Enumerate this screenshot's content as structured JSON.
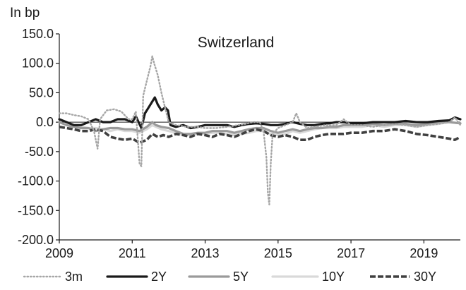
{
  "chart_data": {
    "type": "line",
    "title": "Switzerland",
    "ylabel": "In bp",
    "xlabel": "",
    "xlim": [
      2009,
      2020
    ],
    "ylim": [
      -200,
      150
    ],
    "x_ticks": [
      "2009",
      "2011",
      "2013",
      "2015",
      "2017",
      "2019"
    ],
    "y_ticks": [
      "150.0",
      "100.0",
      "50.0",
      "0.0",
      "-50.0",
      "-100.0",
      "-150.0",
      "-200.0"
    ],
    "zero_line": 0,
    "grid": false,
    "legend_position": "bottom",
    "series": [
      {
        "name": "3m",
        "color": "#a6a6a6",
        "style": "dotted",
        "points": [
          [
            2009.0,
            15
          ],
          [
            2009.2,
            15
          ],
          [
            2009.4,
            12
          ],
          [
            2009.6,
            10
          ],
          [
            2009.8,
            5
          ],
          [
            2009.95,
            -15
          ],
          [
            2010.05,
            -45
          ],
          [
            2010.12,
            5
          ],
          [
            2010.3,
            20
          ],
          [
            2010.5,
            22
          ],
          [
            2010.7,
            18
          ],
          [
            2010.9,
            5
          ],
          [
            2011.0,
            5
          ],
          [
            2011.1,
            18
          ],
          [
            2011.2,
            -70
          ],
          [
            2011.25,
            -75
          ],
          [
            2011.3,
            45
          ],
          [
            2011.4,
            70
          ],
          [
            2011.5,
            95
          ],
          [
            2011.55,
            112
          ],
          [
            2011.6,
            100
          ],
          [
            2011.7,
            80
          ],
          [
            2011.8,
            50
          ],
          [
            2011.9,
            25
          ],
          [
            2012.0,
            0
          ],
          [
            2012.2,
            -5
          ],
          [
            2012.5,
            -8
          ],
          [
            2012.8,
            -8
          ],
          [
            2013.0,
            -10
          ],
          [
            2013.3,
            -10
          ],
          [
            2013.6,
            -8
          ],
          [
            2013.9,
            -5
          ],
          [
            2014.1,
            -3
          ],
          [
            2014.3,
            0
          ],
          [
            2014.5,
            0
          ],
          [
            2014.6,
            -15
          ],
          [
            2014.68,
            -60
          ],
          [
            2014.72,
            -120
          ],
          [
            2014.76,
            -140
          ],
          [
            2014.8,
            -70
          ],
          [
            2014.85,
            -20
          ],
          [
            2015.0,
            -10
          ],
          [
            2015.2,
            -5
          ],
          [
            2015.4,
            0
          ],
          [
            2015.5,
            15
          ],
          [
            2015.6,
            0
          ],
          [
            2015.8,
            -10
          ],
          [
            2016.0,
            -8
          ],
          [
            2016.3,
            -5
          ],
          [
            2016.6,
            -5
          ],
          [
            2016.8,
            5
          ],
          [
            2017.0,
            -5
          ],
          [
            2017.3,
            -5
          ],
          [
            2017.6,
            -8
          ],
          [
            2017.9,
            -5
          ],
          [
            2018.2,
            -3
          ],
          [
            2018.5,
            -5
          ],
          [
            2018.8,
            -8
          ],
          [
            2019.1,
            -5
          ],
          [
            2019.4,
            -3
          ],
          [
            2019.7,
            0
          ],
          [
            2019.85,
            8
          ],
          [
            2020.0,
            -5
          ]
        ]
      },
      {
        "name": "2Y",
        "color": "#1a1a1a",
        "style": "solid-thick",
        "points": [
          [
            2009.0,
            5
          ],
          [
            2009.2,
            0
          ],
          [
            2009.4,
            -5
          ],
          [
            2009.6,
            -5
          ],
          [
            2009.8,
            0
          ],
          [
            2010.0,
            5
          ],
          [
            2010.2,
            0
          ],
          [
            2010.4,
            0
          ],
          [
            2010.6,
            5
          ],
          [
            2010.8,
            5
          ],
          [
            2011.0,
            0
          ],
          [
            2011.1,
            10
          ],
          [
            2011.25,
            -10
          ],
          [
            2011.35,
            15
          ],
          [
            2011.45,
            25
          ],
          [
            2011.55,
            35
          ],
          [
            2011.62,
            42
          ],
          [
            2011.7,
            30
          ],
          [
            2011.8,
            20
          ],
          [
            2011.9,
            25
          ],
          [
            2011.98,
            20
          ],
          [
            2012.05,
            -5
          ],
          [
            2012.2,
            -8
          ],
          [
            2012.4,
            -5
          ],
          [
            2012.6,
            -10
          ],
          [
            2012.8,
            -8
          ],
          [
            2013.0,
            -5
          ],
          [
            2013.2,
            -5
          ],
          [
            2013.4,
            -5
          ],
          [
            2013.6,
            -5
          ],
          [
            2013.8,
            -8
          ],
          [
            2014.0,
            -5
          ],
          [
            2014.2,
            -3
          ],
          [
            2014.4,
            -2
          ],
          [
            2014.6,
            -3
          ],
          [
            2014.8,
            -5
          ],
          [
            2015.0,
            -5
          ],
          [
            2015.2,
            -3
          ],
          [
            2015.4,
            0
          ],
          [
            2015.6,
            -3
          ],
          [
            2015.8,
            -5
          ],
          [
            2016.0,
            -5
          ],
          [
            2016.2,
            -3
          ],
          [
            2016.4,
            -2
          ],
          [
            2016.6,
            0
          ],
          [
            2016.8,
            0
          ],
          [
            2017.0,
            -2
          ],
          [
            2017.3,
            -2
          ],
          [
            2017.6,
            0
          ],
          [
            2017.9,
            0
          ],
          [
            2018.2,
            0
          ],
          [
            2018.5,
            2
          ],
          [
            2018.8,
            0
          ],
          [
            2019.1,
            0
          ],
          [
            2019.4,
            2
          ],
          [
            2019.7,
            3
          ],
          [
            2019.85,
            8
          ],
          [
            2020.0,
            5
          ]
        ]
      },
      {
        "name": "5Y",
        "color": "#9a9a9a",
        "style": "solid-thick",
        "points": [
          [
            2009.0,
            0
          ],
          [
            2009.2,
            -5
          ],
          [
            2009.4,
            -8
          ],
          [
            2009.6,
            -10
          ],
          [
            2009.8,
            -10
          ],
          [
            2010.0,
            -15
          ],
          [
            2010.2,
            -12
          ],
          [
            2010.4,
            -10
          ],
          [
            2010.6,
            -10
          ],
          [
            2010.8,
            -12
          ],
          [
            2011.0,
            -12
          ],
          [
            2011.2,
            -15
          ],
          [
            2011.4,
            -8
          ],
          [
            2011.55,
            0
          ],
          [
            2011.65,
            -5
          ],
          [
            2011.8,
            -8
          ],
          [
            2012.0,
            -10
          ],
          [
            2012.2,
            -15
          ],
          [
            2012.4,
            -20
          ],
          [
            2012.6,
            -20
          ],
          [
            2012.8,
            -18
          ],
          [
            2013.0,
            -18
          ],
          [
            2013.2,
            -15
          ],
          [
            2013.4,
            -15
          ],
          [
            2013.6,
            -15
          ],
          [
            2013.8,
            -18
          ],
          [
            2014.0,
            -15
          ],
          [
            2014.2,
            -12
          ],
          [
            2014.4,
            -10
          ],
          [
            2014.6,
            -10
          ],
          [
            2014.8,
            -15
          ],
          [
            2015.0,
            -18
          ],
          [
            2015.2,
            -15
          ],
          [
            2015.4,
            -12
          ],
          [
            2015.6,
            -15
          ],
          [
            2015.8,
            -12
          ],
          [
            2016.0,
            -10
          ],
          [
            2016.2,
            -10
          ],
          [
            2016.4,
            -8
          ],
          [
            2016.6,
            -8
          ],
          [
            2016.8,
            -5
          ],
          [
            2017.0,
            -5
          ],
          [
            2017.3,
            -5
          ],
          [
            2017.6,
            -3
          ],
          [
            2017.9,
            -5
          ],
          [
            2018.2,
            -3
          ],
          [
            2018.5,
            -3
          ],
          [
            2018.8,
            -5
          ],
          [
            2019.1,
            -3
          ],
          [
            2019.4,
            0
          ],
          [
            2019.7,
            0
          ],
          [
            2020.0,
            -2
          ]
        ]
      },
      {
        "name": "10Y",
        "color": "#d9d9d9",
        "style": "solid-thick",
        "points": [
          [
            2009.0,
            5
          ],
          [
            2009.2,
            0
          ],
          [
            2009.4,
            -5
          ],
          [
            2009.6,
            -8
          ],
          [
            2009.8,
            -10
          ],
          [
            2010.0,
            -10
          ],
          [
            2010.2,
            -12
          ],
          [
            2010.4,
            -15
          ],
          [
            2010.6,
            -12
          ],
          [
            2010.8,
            -15
          ],
          [
            2011.0,
            -15
          ],
          [
            2011.2,
            -18
          ],
          [
            2011.4,
            -12
          ],
          [
            2011.55,
            -5
          ],
          [
            2011.65,
            -8
          ],
          [
            2011.8,
            -12
          ],
          [
            2012.0,
            -15
          ],
          [
            2012.2,
            -18
          ],
          [
            2012.4,
            -22
          ],
          [
            2012.6,
            -22
          ],
          [
            2012.8,
            -20
          ],
          [
            2013.0,
            -20
          ],
          [
            2013.2,
            -18
          ],
          [
            2013.4,
            -18
          ],
          [
            2013.6,
            -20
          ],
          [
            2013.8,
            -22
          ],
          [
            2014.0,
            -20
          ],
          [
            2014.2,
            -18
          ],
          [
            2014.4,
            -15
          ],
          [
            2014.6,
            -15
          ],
          [
            2014.8,
            -20
          ],
          [
            2015.0,
            -22
          ],
          [
            2015.2,
            -20
          ],
          [
            2015.4,
            -15
          ],
          [
            2015.6,
            -18
          ],
          [
            2015.8,
            -15
          ],
          [
            2016.0,
            -12
          ],
          [
            2016.2,
            -10
          ],
          [
            2016.4,
            -10
          ],
          [
            2016.6,
            -10
          ],
          [
            2016.8,
            -8
          ],
          [
            2017.0,
            -8
          ],
          [
            2017.3,
            -8
          ],
          [
            2017.6,
            -5
          ],
          [
            2017.9,
            -8
          ],
          [
            2018.2,
            -5
          ],
          [
            2018.5,
            -5
          ],
          [
            2018.8,
            -8
          ],
          [
            2019.1,
            -5
          ],
          [
            2019.4,
            -3
          ],
          [
            2019.7,
            0
          ],
          [
            2020.0,
            -2
          ]
        ]
      },
      {
        "name": "30Y",
        "color": "#404040",
        "style": "dashed-thick",
        "points": [
          [
            2009.0,
            -8
          ],
          [
            2009.2,
            -10
          ],
          [
            2009.4,
            -12
          ],
          [
            2009.6,
            -15
          ],
          [
            2009.8,
            -15
          ],
          [
            2010.0,
            -12
          ],
          [
            2010.2,
            -15
          ],
          [
            2010.4,
            -25
          ],
          [
            2010.6,
            -28
          ],
          [
            2010.8,
            -30
          ],
          [
            2011.0,
            -28
          ],
          [
            2011.2,
            -35
          ],
          [
            2011.4,
            -30
          ],
          [
            2011.55,
            -20
          ],
          [
            2011.7,
            -25
          ],
          [
            2011.85,
            -22
          ],
          [
            2012.0,
            -25
          ],
          [
            2012.2,
            -20
          ],
          [
            2012.4,
            -22
          ],
          [
            2012.6,
            -25
          ],
          [
            2012.8,
            -20
          ],
          [
            2013.0,
            -22
          ],
          [
            2013.2,
            -25
          ],
          [
            2013.4,
            -20
          ],
          [
            2013.6,
            -22
          ],
          [
            2013.8,
            -25
          ],
          [
            2014.0,
            -20
          ],
          [
            2014.2,
            -15
          ],
          [
            2014.4,
            -12
          ],
          [
            2014.6,
            -15
          ],
          [
            2014.8,
            -22
          ],
          [
            2015.0,
            -25
          ],
          [
            2015.2,
            -22
          ],
          [
            2015.4,
            -25
          ],
          [
            2015.6,
            -30
          ],
          [
            2015.8,
            -30
          ],
          [
            2016.0,
            -25
          ],
          [
            2016.2,
            -22
          ],
          [
            2016.4,
            -20
          ],
          [
            2016.6,
            -20
          ],
          [
            2016.8,
            -20
          ],
          [
            2017.0,
            -18
          ],
          [
            2017.3,
            -18
          ],
          [
            2017.6,
            -15
          ],
          [
            2017.9,
            -15
          ],
          [
            2018.2,
            -12
          ],
          [
            2018.5,
            -15
          ],
          [
            2018.8,
            -20
          ],
          [
            2019.1,
            -22
          ],
          [
            2019.4,
            -25
          ],
          [
            2019.7,
            -28
          ],
          [
            2019.85,
            -30
          ],
          [
            2020.0,
            -25
          ]
        ]
      }
    ]
  }
}
